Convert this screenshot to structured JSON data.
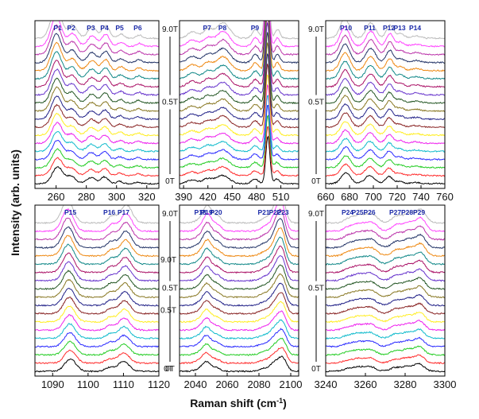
{
  "chart_data": {
    "type": "line",
    "xlabel": "Raman shift (cm",
    "xlabel_sup": "-1",
    "xlabel_end": ")",
    "ylabel": "Intensity (arb. units)",
    "field_labels": {
      "top": "9.0T",
      "mid": "0.5T",
      "bottom": "0T"
    },
    "field_range_T": [
      0,
      9.0
    ],
    "spectra_count": 19,
    "colors": [
      "#000000",
      "#ff2b2b",
      "#22cc22",
      "#2b2bff",
      "#11bbcc",
      "#ee22ee",
      "#ffee22",
      "#882222",
      "#222288",
      "#887722",
      "#225522",
      "#6633cc",
      "#aa1166",
      "#118888",
      "#ee8811",
      "#223366",
      "#bb33aa",
      "#ff44ff",
      "#bbbbbb"
    ],
    "panels": [
      {
        "id": "a",
        "xlim": [
          246,
          328
        ],
        "xticks": [
          260,
          280,
          300,
          320
        ],
        "shift": 0.95,
        "peaks": [
          {
            "x": 261,
            "h": 7.0,
            "w": 3.5,
            "name": "P1"
          },
          {
            "x": 270,
            "h": 3.0,
            "w": 3,
            "name": "P2"
          },
          {
            "x": 283,
            "h": 2.5,
            "w": 3,
            "name": "P3"
          },
          {
            "x": 292,
            "h": 2.8,
            "w": 2.5,
            "name": "P4"
          },
          {
            "x": 302,
            "h": 1.0,
            "w": 2,
            "name": "P5"
          },
          {
            "x": 314,
            "h": 0.7,
            "w": 2,
            "name": "P6"
          }
        ]
      },
      {
        "id": "b",
        "xlim": [
          385,
          532
        ],
        "xticks": [
          390,
          420,
          450,
          480,
          510
        ],
        "shift": 0.95,
        "peaks": [
          {
            "x": 400,
            "h": 1.5,
            "w": 6,
            "name": ""
          },
          {
            "x": 419,
            "h": 2.0,
            "w": 6,
            "name": "P7"
          },
          {
            "x": 438,
            "h": 3.5,
            "w": 8,
            "name": "P8"
          },
          {
            "x": 478,
            "h": 2.0,
            "w": 4,
            "name": "P9"
          },
          {
            "x": 494,
            "h": 20,
            "w": 2.5,
            "name": ""
          },
          {
            "x": 505,
            "h": 2.0,
            "w": 3,
            "name": ""
          }
        ]
      },
      {
        "id": "c",
        "xlim": [
          660,
          760
        ],
        "xticks": [
          660,
          680,
          700,
          720,
          740,
          760
        ],
        "shift": 0.95,
        "peaks": [
          {
            "x": 677,
            "h": 4.5,
            "w": 4,
            "name": "P10"
          },
          {
            "x": 697,
            "h": 3.5,
            "w": 4,
            "name": "P11"
          },
          {
            "x": 713,
            "h": 3.0,
            "w": 3,
            "name": "P12"
          },
          {
            "x": 722,
            "h": 1.0,
            "w": 3,
            "name": "P13"
          },
          {
            "x": 735,
            "h": 0.5,
            "w": 4,
            "name": "P14"
          }
        ]
      },
      {
        "id": "d",
        "xlim": [
          1085,
          1120
        ],
        "xticks": [
          1090,
          1100,
          1110,
          1120
        ],
        "shift": 0.8,
        "peaks": [
          {
            "x": 1095,
            "h": 5.0,
            "w": 1.6,
            "name": "P15"
          },
          {
            "x": 1106,
            "h": 1.5,
            "w": 1.2,
            "name": "P16"
          },
          {
            "x": 1110,
            "h": 4.0,
            "w": 1.6,
            "name": "P17"
          }
        ]
      },
      {
        "id": "e",
        "xlim": [
          2030,
          2105
        ],
        "xticks": [
          2040,
          2060,
          2080,
          2100
        ],
        "shift": 0.85,
        "peaks": [
          {
            "x": 2043,
            "h": 1.0,
            "w": 3,
            "name": "P18"
          },
          {
            "x": 2047,
            "h": 3.5,
            "w": 2.5,
            "name": "P19"
          },
          {
            "x": 2053,
            "h": 1.5,
            "w": 2.5,
            "name": "P20"
          },
          {
            "x": 2083,
            "h": 1.0,
            "w": 3,
            "name": "P21"
          },
          {
            "x": 2090,
            "h": 3.5,
            "w": 3,
            "name": "P22"
          },
          {
            "x": 2095,
            "h": 5.0,
            "w": 2.5,
            "name": "P23"
          }
        ]
      },
      {
        "id": "f",
        "xlim": [
          3240,
          3300
        ],
        "xticks": [
          3240,
          3260,
          3280,
          3300
        ],
        "shift": 0.9,
        "peaks": [
          {
            "x": 3251,
            "h": 1.0,
            "w": 2.5,
            "name": "P24"
          },
          {
            "x": 3256,
            "h": 1.5,
            "w": 2.5,
            "name": "P25"
          },
          {
            "x": 3262,
            "h": 2.0,
            "w": 3,
            "name": "P26"
          },
          {
            "x": 3275,
            "h": 1.5,
            "w": 2.5,
            "name": "P27"
          },
          {
            "x": 3281,
            "h": 2.0,
            "w": 2.5,
            "name": "P28"
          },
          {
            "x": 3287,
            "h": 3.0,
            "w": 2.5,
            "name": "P29"
          }
        ]
      }
    ]
  }
}
